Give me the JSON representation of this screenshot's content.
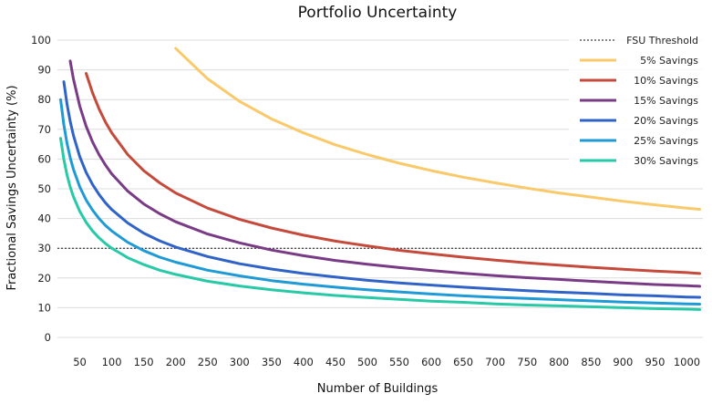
{
  "chart_data": {
    "type": "line",
    "title": "Portfolio Uncertainty",
    "xlabel": "Number of Buildings",
    "ylabel": "Fractional Savings Uncertainty (%)",
    "xlim": [
      15,
      1025
    ],
    "ylim": [
      0,
      100
    ],
    "x_ticks": [
      50,
      100,
      150,
      200,
      250,
      300,
      350,
      400,
      450,
      500,
      550,
      600,
      650,
      700,
      750,
      800,
      850,
      900,
      950,
      1000
    ],
    "y_ticks": [
      0,
      10,
      20,
      30,
      40,
      50,
      60,
      70,
      80,
      90,
      100
    ],
    "grid": "horizontal",
    "legend_position": "top-right",
    "threshold": {
      "name": "FSU Threshold",
      "value": 30,
      "color": "#111111",
      "style": "dotted"
    },
    "x": [
      20,
      25,
      30,
      35,
      40,
      50,
      60,
      70,
      80,
      90,
      100,
      125,
      150,
      175,
      200,
      250,
      300,
      350,
      400,
      450,
      500,
      550,
      600,
      650,
      700,
      750,
      800,
      850,
      900,
      950,
      1000,
      1020
    ],
    "series": [
      {
        "name": "5% Savings",
        "color": "#f9c96a",
        "values": [
          null,
          null,
          null,
          null,
          null,
          null,
          null,
          null,
          null,
          null,
          null,
          null,
          null,
          null,
          97.2,
          87.0,
          79.4,
          73.5,
          68.8,
          64.8,
          61.5,
          58.6,
          56.1,
          53.9,
          52.0,
          50.2,
          48.6,
          47.2,
          45.8,
          44.6,
          43.5,
          43.1
        ]
      },
      {
        "name": "10% Savings",
        "color": "#c64a3b",
        "values": [
          null,
          null,
          null,
          null,
          null,
          null,
          88.8,
          82.2,
          76.9,
          72.5,
          68.8,
          61.5,
          56.1,
          52.0,
          48.6,
          43.5,
          39.7,
          36.8,
          34.4,
          32.4,
          30.8,
          29.3,
          28.1,
          27.0,
          26.0,
          25.1,
          24.3,
          23.6,
          22.9,
          22.3,
          21.8,
          21.5
        ]
      },
      {
        "name": "15% Savings",
        "color": "#7a3b86",
        "values": [
          null,
          null,
          null,
          93.0,
          87.0,
          77.8,
          71.0,
          65.7,
          61.5,
          58.0,
          55.0,
          49.2,
          44.9,
          41.6,
          38.9,
          34.8,
          31.8,
          29.4,
          27.5,
          25.9,
          24.6,
          23.5,
          22.5,
          21.6,
          20.8,
          20.1,
          19.5,
          18.9,
          18.3,
          17.8,
          17.4,
          17.2
        ]
      },
      {
        "name": "20% Savings",
        "color": "#2f63c8",
        "values": [
          null,
          86.0,
          78.5,
          72.7,
          68.0,
          60.8,
          55.5,
          51.4,
          48.1,
          45.3,
          43.0,
          38.5,
          35.1,
          32.5,
          30.4,
          27.2,
          24.8,
          23.0,
          21.5,
          20.3,
          19.2,
          18.3,
          17.6,
          16.9,
          16.3,
          15.7,
          15.2,
          14.8,
          14.3,
          14.0,
          13.6,
          13.5
        ]
      },
      {
        "name": "25% Savings",
        "color": "#1e9ad6",
        "values": [
          80.0,
          71.6,
          65.3,
          60.5,
          56.6,
          50.6,
          46.2,
          42.8,
          40.0,
          37.7,
          35.8,
          32.0,
          29.2,
          27.0,
          25.3,
          22.6,
          20.7,
          19.1,
          17.9,
          16.9,
          16.0,
          15.3,
          14.6,
          14.0,
          13.5,
          13.1,
          12.7,
          12.3,
          11.9,
          11.6,
          11.3,
          11.2
        ]
      },
      {
        "name": "30% Savings",
        "color": "#27c9a6",
        "values": [
          67.0,
          59.9,
          54.7,
          50.6,
          47.4,
          42.4,
          38.7,
          35.8,
          33.5,
          31.6,
          30.0,
          26.8,
          24.5,
          22.6,
          21.2,
          18.9,
          17.3,
          16.0,
          15.0,
          14.1,
          13.4,
          12.8,
          12.2,
          11.8,
          11.3,
          10.9,
          10.6,
          10.3,
          10.0,
          9.7,
          9.5,
          9.4
        ]
      }
    ]
  }
}
